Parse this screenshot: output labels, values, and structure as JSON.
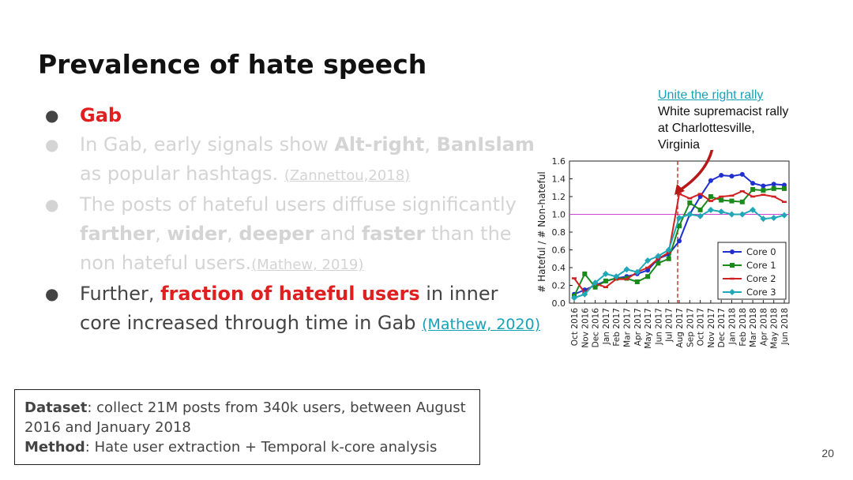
{
  "slide": {
    "title": "Prevalence of hate speech",
    "page_number": "20",
    "bullets": {
      "b1_label": "Gab",
      "b2_p1": "In Gab, early signals show ",
      "b2_alt": "Alt-right",
      "b2_p2": ", ",
      "b2_ban": "BanIslam",
      "b2_p3": " as popular hashtags. ",
      "b2_ref": "(Zannettou,2018)",
      "b3_p1": "The posts of hateful users diffuse significantly ",
      "b3_farther": "farther",
      "b3_c1": ", ",
      "b3_wider": "wider",
      "b3_c2": ", ",
      "b3_deeper": "deeper",
      "b3_and": " and ",
      "b3_faster": "faster",
      "b3_p2": " than the non hateful users.",
      "b3_ref": "(Mathew, 2019)",
      "b4_p1": "Further, ",
      "b4_red": "fraction of hateful users",
      "b4_p2": " in inner core increased through time in Gab ",
      "b4_ref": "(Mathew, 2020)"
    },
    "note": {
      "dataset_label": "Dataset",
      "dataset_text": ": collect 21M posts from 340k users, between August 2016 and January 2018",
      "method_label": "Method",
      "method_text": ": Hate user extraction + Temporal k-core analysis"
    },
    "annotation": {
      "link": "Unite the right rally",
      "line1": "White supremacist rally",
      "line2": "at Charlottesville,",
      "line3": "Virginia"
    }
  },
  "chart_data": {
    "type": "line",
    "ylabel": "# Hateful / # Non-hateful",
    "xlabel": "",
    "ylim": [
      0.0,
      1.6
    ],
    "yticks": [
      "0.0",
      "0.2",
      "0.4",
      "0.6",
      "0.8",
      "1.0",
      "1.2",
      "1.4",
      "1.6"
    ],
    "categories": [
      "Oct 2016",
      "Nov 2016",
      "Dec 2016",
      "Jan 2017",
      "Feb 2017",
      "Mar 2017",
      "Apr 2017",
      "May 2017",
      "Jun 2017",
      "Jul 2017",
      "Aug 2017",
      "Sep 2017",
      "Oct 2017",
      "Nov 2017",
      "Dec 2017",
      "Jan 2018",
      "Feb 2018",
      "Mar 2018",
      "Apr 2018",
      "May 2018",
      "Jun 2018"
    ],
    "reference_line": 1.0,
    "event_marker": "Aug 2017",
    "colors": {
      "core0": "#1f2fd0",
      "core1": "#1a8a1a",
      "core2": "#d02020",
      "core3": "#20a8b8",
      "reference": "#cc44cc",
      "event": "#c02020"
    },
    "series": [
      {
        "name": "Core 0",
        "values": [
          0.1,
          0.15,
          0.2,
          0.25,
          0.28,
          0.3,
          0.33,
          0.37,
          0.5,
          0.55,
          0.7,
          1.0,
          1.2,
          1.38,
          1.44,
          1.43,
          1.45,
          1.35,
          1.32,
          1.34,
          1.33
        ]
      },
      {
        "name": "Core 1",
        "values": [
          0.08,
          0.33,
          0.18,
          0.25,
          0.28,
          0.28,
          0.24,
          0.3,
          0.45,
          0.5,
          0.87,
          1.13,
          1.05,
          1.2,
          1.16,
          1.15,
          1.14,
          1.28,
          1.27,
          1.29,
          1.29
        ]
      },
      {
        "name": "Core 2",
        "values": [
          0.28,
          0.12,
          0.22,
          0.18,
          0.27,
          0.27,
          0.35,
          0.4,
          0.5,
          0.57,
          1.23,
          1.18,
          1.23,
          1.15,
          1.2,
          1.21,
          1.26,
          1.2,
          1.22,
          1.2,
          1.14
        ]
      },
      {
        "name": "Core 3",
        "values": [
          0.06,
          0.1,
          0.23,
          0.33,
          0.3,
          0.38,
          0.35,
          0.48,
          0.53,
          0.6,
          0.96,
          1.0,
          0.98,
          1.05,
          1.03,
          1.0,
          1.0,
          1.05,
          0.95,
          0.96,
          0.99
        ]
      }
    ]
  }
}
